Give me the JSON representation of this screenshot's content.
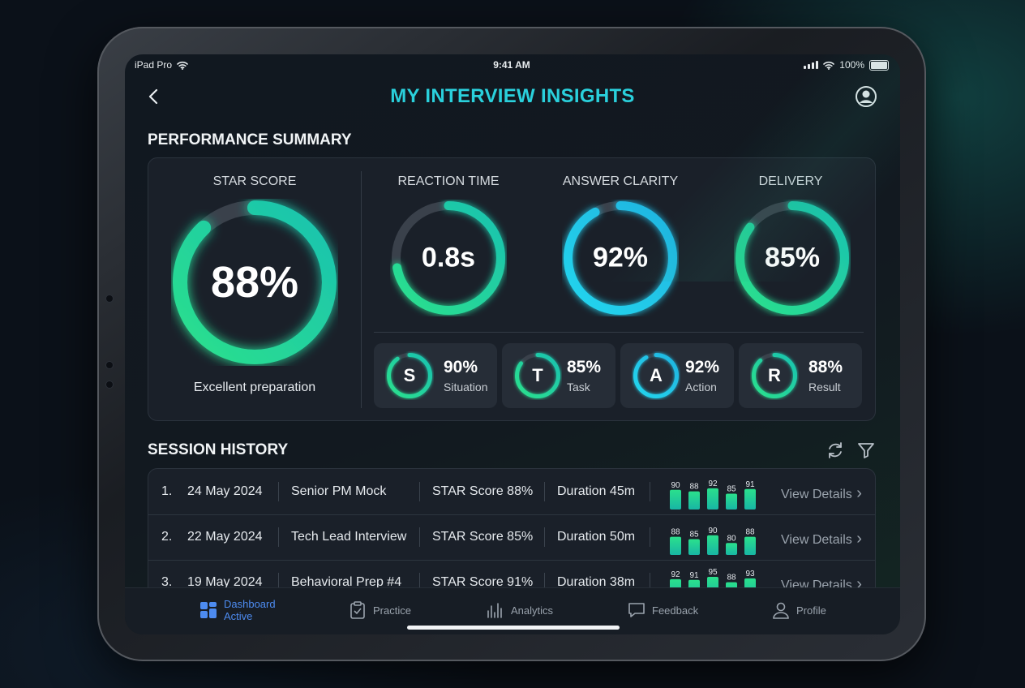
{
  "status_bar": {
    "device": "iPad Pro",
    "time": "9:41 AM",
    "battery": "100%"
  },
  "header": {
    "title": "MY INTERVIEW INSIGHTS"
  },
  "performance": {
    "section_title": "PERFORMANCE SUMMARY",
    "star": {
      "label": "STAR SCORE",
      "value": "88%",
      "fraction": 0.88,
      "caption": "Excellent preparation"
    },
    "metrics": [
      {
        "label": "REACTION TIME",
        "value": "0.8s",
        "fraction": 0.72
      },
      {
        "label": "ANSWER CLARITY",
        "value": "92%",
        "fraction": 0.92
      },
      {
        "label": "DELIVERY",
        "value": "85%",
        "fraction": 0.85
      }
    ],
    "components": [
      {
        "letter": "S",
        "pct": "90%",
        "name": "Situation",
        "fraction": 0.9
      },
      {
        "letter": "T",
        "pct": "85%",
        "name": "Task",
        "fraction": 0.85
      },
      {
        "letter": "A",
        "pct": "92%",
        "name": "Action",
        "fraction": 0.92
      },
      {
        "letter": "R",
        "pct": "88%",
        "name": "Result",
        "fraction": 0.88
      }
    ]
  },
  "history": {
    "section_title": "SESSION HISTORY",
    "view_label": "View Details",
    "sessions": [
      {
        "num": "1.",
        "date": "24 May 2024",
        "title": "Senior PM Mock",
        "score": "STAR Score 88%",
        "duration": "Duration 45m",
        "bars": [
          90,
          88,
          92,
          85,
          91
        ]
      },
      {
        "num": "2.",
        "date": "22 May 2024",
        "title": "Tech Lead Interview",
        "score": "STAR Score 85%",
        "duration": "Duration 50m",
        "bars": [
          88,
          85,
          90,
          80,
          88
        ]
      },
      {
        "num": "3.",
        "date": "19 May 2024",
        "title": "Behavioral Prep #4",
        "score": "STAR Score 91%",
        "duration": "Duration 38m",
        "bars": [
          92,
          91,
          95,
          88,
          93
        ]
      }
    ]
  },
  "tabbar": {
    "tabs": [
      {
        "label": "Dashboard",
        "sub": "Active",
        "icon": "dashboard-icon",
        "active": true
      },
      {
        "label": "Practice",
        "icon": "clipboard-check-icon"
      },
      {
        "label": "Analytics",
        "icon": "analytics-icon"
      },
      {
        "label": "Feedback",
        "icon": "chat-bubble-icon"
      },
      {
        "label": "Profile",
        "icon": "person-icon"
      }
    ]
  },
  "colors": {
    "accent": "#2ad0dc",
    "green": "#2be08c",
    "cyan": "#22d6ee",
    "active_tab": "#4d8bf0"
  }
}
